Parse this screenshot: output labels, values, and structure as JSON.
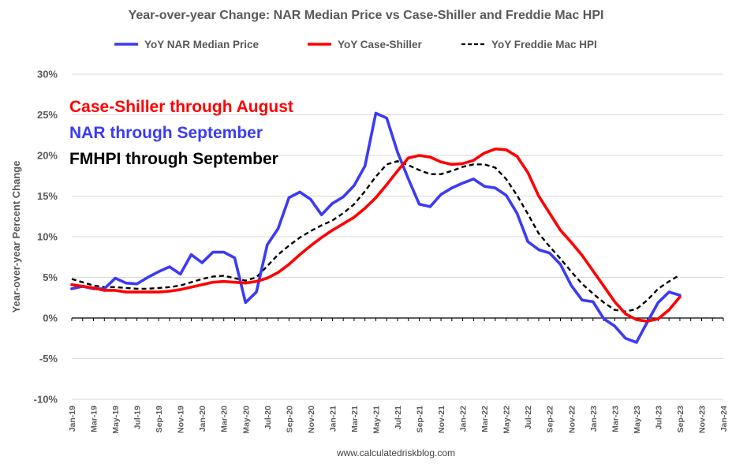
{
  "chart_data": {
    "type": "line",
    "title": "Year-over-year Change: NAR Median Price vs Case-Shiller and Freddie Mac HPI",
    "ylabel": "Year-over-year Percent Change",
    "xlabel": "",
    "ylim": [
      -10,
      30
    ],
    "yticks": [
      -10,
      -5,
      0,
      5,
      10,
      15,
      20,
      25,
      30
    ],
    "ytick_labels": [
      "-10%",
      "-5%",
      "0%",
      "5%",
      "10%",
      "15%",
      "20%",
      "25%",
      "30%"
    ],
    "x_start": "Jan-19",
    "x_end": "Jan-24",
    "xtick_labels": [
      "Jan-19",
      "Mar-19",
      "May-19",
      "Jul-19",
      "Sep-19",
      "Nov-19",
      "Jan-20",
      "Mar-20",
      "May-20",
      "Jul-20",
      "Sep-20",
      "Nov-20",
      "Jan-21",
      "Mar-21",
      "May-21",
      "Jul-21",
      "Sep-21",
      "Nov-21",
      "Jan-22",
      "Mar-22",
      "May-22",
      "Jul-22",
      "Sep-22",
      "Nov-22",
      "Jan-23",
      "Mar-23",
      "May-23",
      "Jul-23",
      "Sep-23",
      "Nov-23",
      "Jan-24"
    ],
    "grid": true,
    "legend_position": "top",
    "series": [
      {
        "name": "YoY NAR Median Price",
        "color": "#3b3bf5",
        "style": "solid",
        "start": "Jan-19",
        "values": [
          3.6,
          3.9,
          3.6,
          3.6,
          4.9,
          4.3,
          4.2,
          5.0,
          5.7,
          6.3,
          5.4,
          7.8,
          6.8,
          8.1,
          8.1,
          7.4,
          1.9,
          3.2,
          9.0,
          11.0,
          14.8,
          15.5,
          14.6,
          12.7,
          14.1,
          14.9,
          16.3,
          18.7,
          25.2,
          24.6,
          20.4,
          17.1,
          14.0,
          13.7,
          15.2,
          16.0,
          16.6,
          17.1,
          16.2,
          16.0,
          15.1,
          12.9,
          9.4,
          8.4,
          8.0,
          6.6,
          4.0,
          2.2,
          2.0,
          -0.1,
          -1.0,
          -2.5,
          -3.0,
          -0.5,
          1.9,
          3.2,
          2.8
        ]
      },
      {
        "name": "YoY Case-Shiller",
        "color": "#ff0000",
        "style": "solid",
        "start": "Jan-19",
        "values": [
          4.1,
          3.9,
          3.7,
          3.4,
          3.4,
          3.2,
          3.2,
          3.2,
          3.2,
          3.3,
          3.5,
          3.8,
          4.1,
          4.4,
          4.5,
          4.4,
          4.3,
          4.5,
          4.9,
          5.6,
          6.6,
          7.8,
          8.9,
          9.9,
          10.8,
          11.6,
          12.4,
          13.5,
          14.8,
          16.4,
          18.1,
          19.7,
          20.0,
          19.8,
          19.2,
          18.9,
          19.0,
          19.4,
          20.3,
          20.8,
          20.7,
          19.9,
          17.9,
          15.0,
          12.9,
          10.8,
          9.3,
          7.7,
          5.8,
          3.9,
          2.0,
          0.5,
          -0.2,
          -0.4,
          -0.1,
          1.0,
          2.6
        ]
      },
      {
        "name": "YoY Freddie Mac HPI",
        "color": "#000000",
        "style": "dashed",
        "start": "Jan-19",
        "values": [
          4.8,
          4.4,
          4.0,
          3.8,
          3.8,
          3.7,
          3.6,
          3.6,
          3.7,
          3.8,
          4.0,
          4.4,
          4.8,
          5.1,
          5.2,
          4.9,
          4.6,
          5.0,
          6.4,
          7.8,
          8.9,
          9.9,
          10.7,
          11.4,
          12.0,
          12.9,
          14.0,
          15.6,
          17.4,
          18.9,
          19.3,
          18.8,
          18.2,
          17.7,
          17.7,
          18.1,
          18.6,
          18.9,
          18.9,
          18.5,
          17.1,
          15.1,
          12.8,
          10.4,
          8.8,
          7.3,
          5.7,
          4.2,
          3.0,
          1.9,
          1.0,
          0.8,
          1.1,
          2.2,
          3.6,
          4.5,
          5.3
        ]
      }
    ],
    "annotations": [
      {
        "text": "Case-Shiller through August",
        "color": "#ff0000"
      },
      {
        "text": "NAR through September",
        "color": "#3b3bf5"
      },
      {
        "text": "FMHPI through September",
        "color": "#000000"
      }
    ],
    "source": "www.calculatedriskblog.com"
  }
}
